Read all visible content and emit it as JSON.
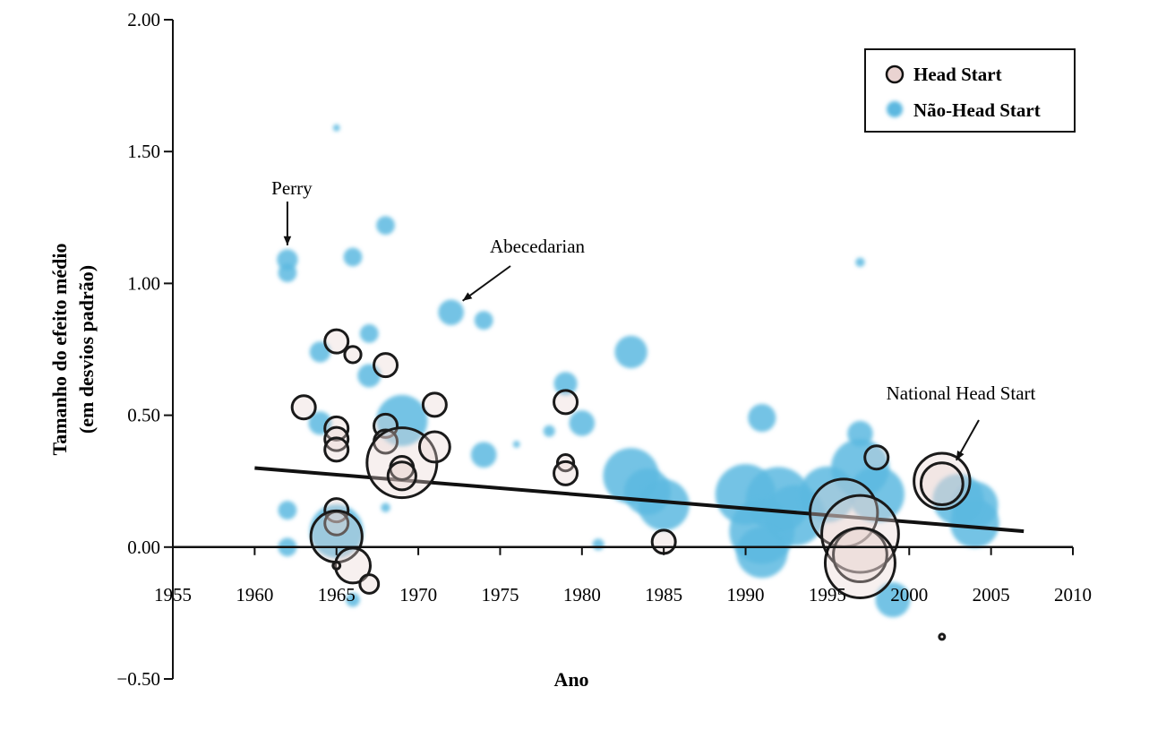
{
  "chart_data": {
    "type": "scatter",
    "title": "",
    "xlabel": "Ano",
    "ylabel": "Tamanho do efeito médio",
    "ylabel2": "(em desvios padrão)",
    "xlim": [
      1955,
      2010
    ],
    "ylim": [
      -0.5,
      2.0
    ],
    "x_ticks": [
      "1955",
      "1960",
      "1965",
      "1970",
      "1975",
      "1980",
      "1985",
      "1990",
      "1995",
      "2000",
      "2005",
      "2010"
    ],
    "y_ticks": [
      "−0.50",
      "0.00",
      "0.50",
      "1.00",
      "1.50",
      "2.00"
    ],
    "legend_position": "top-right",
    "colors": {
      "head_start_fill": "#e9d3d1",
      "head_start_stroke": "#1a1a1a",
      "non_head_start": "#5cb8e0",
      "trend": "#111111"
    },
    "series": [
      {
        "name": "Head Start",
        "points": [
          {
            "x": 1963,
            "y": 0.53,
            "s": 1
          },
          {
            "x": 1965,
            "y": 0.78,
            "s": 1
          },
          {
            "x": 1966,
            "y": 0.73,
            "s": 0.7
          },
          {
            "x": 1968,
            "y": 0.69,
            "s": 1
          },
          {
            "x": 1965,
            "y": 0.45,
            "s": 1
          },
          {
            "x": 1965,
            "y": 0.41,
            "s": 1
          },
          {
            "x": 1965,
            "y": 0.37,
            "s": 1
          },
          {
            "x": 1968,
            "y": 0.46,
            "s": 1
          },
          {
            "x": 1968,
            "y": 0.4,
            "s": 1
          },
          {
            "x": 1969,
            "y": 0.32,
            "s": 3
          },
          {
            "x": 1969,
            "y": 0.3,
            "s": 1
          },
          {
            "x": 1969,
            "y": 0.27,
            "s": 1.2
          },
          {
            "x": 1971,
            "y": 0.54,
            "s": 1
          },
          {
            "x": 1971,
            "y": 0.38,
            "s": 1.3
          },
          {
            "x": 1965,
            "y": 0.14,
            "s": 1
          },
          {
            "x": 1965,
            "y": 0.09,
            "s": 1
          },
          {
            "x": 1965,
            "y": 0.04,
            "s": 2.2
          },
          {
            "x": 1966,
            "y": -0.07,
            "s": 1.5
          },
          {
            "x": 1967,
            "y": -0.14,
            "s": 0.8
          },
          {
            "x": 1965,
            "y": -0.07,
            "s": 0.3
          },
          {
            "x": 1979,
            "y": 0.55,
            "s": 1
          },
          {
            "x": 1979,
            "y": 0.32,
            "s": 0.7
          },
          {
            "x": 1979,
            "y": 0.28,
            "s": 1
          },
          {
            "x": 1985,
            "y": 0.02,
            "s": 1
          },
          {
            "x": 1996,
            "y": 0.13,
            "s": 2.9
          },
          {
            "x": 1997,
            "y": 0.05,
            "s": 3.3
          },
          {
            "x": 1997,
            "y": -0.03,
            "s": 2.3
          },
          {
            "x": 1997,
            "y": -0.06,
            "s": 3.0
          },
          {
            "x": 1998,
            "y": 0.34,
            "s": 1
          },
          {
            "x": 2002,
            "y": 0.25,
            "s": 2.4
          },
          {
            "x": 2002,
            "y": 0.24,
            "s": 1.8
          },
          {
            "x": 2002,
            "y": -0.34,
            "s": 0.2
          }
        ]
      },
      {
        "name": "Não-Head Start",
        "points": [
          {
            "x": 1965,
            "y": 1.59,
            "s": 0.3
          },
          {
            "x": 1962,
            "y": 1.09,
            "s": 0.9
          },
          {
            "x": 1962,
            "y": 1.04,
            "s": 0.8
          },
          {
            "x": 1968,
            "y": 1.22,
            "s": 0.8
          },
          {
            "x": 1966,
            "y": 1.1,
            "s": 0.8
          },
          {
            "x": 1972,
            "y": 0.89,
            "s": 1.1
          },
          {
            "x": 1974,
            "y": 0.86,
            "s": 0.8
          },
          {
            "x": 1964,
            "y": 0.74,
            "s": 0.9
          },
          {
            "x": 1967,
            "y": 0.81,
            "s": 0.8
          },
          {
            "x": 1967,
            "y": 0.65,
            "s": 1
          },
          {
            "x": 1964,
            "y": 0.47,
            "s": 1
          },
          {
            "x": 1969,
            "y": 0.48,
            "s": 2.2
          },
          {
            "x": 1974,
            "y": 0.35,
            "s": 1.1
          },
          {
            "x": 1976,
            "y": 0.39,
            "s": 0.3
          },
          {
            "x": 1978,
            "y": 0.44,
            "s": 0.5
          },
          {
            "x": 1979,
            "y": 0.62,
            "s": 1
          },
          {
            "x": 1980,
            "y": 0.47,
            "s": 1.1
          },
          {
            "x": 1981,
            "y": 0.01,
            "s": 0.5
          },
          {
            "x": 1983,
            "y": 0.74,
            "s": 1.4
          },
          {
            "x": 1983,
            "y": 0.27,
            "s": 2.4
          },
          {
            "x": 1984,
            "y": 0.21,
            "s": 2.0
          },
          {
            "x": 1985,
            "y": 0.16,
            "s": 2.2
          },
          {
            "x": 1962,
            "y": 0.14,
            "s": 0.8
          },
          {
            "x": 1962,
            "y": 0.0,
            "s": 0.8
          },
          {
            "x": 1965,
            "y": 0.06,
            "s": 2.3
          },
          {
            "x": 1966,
            "y": -0.2,
            "s": 0.6
          },
          {
            "x": 1968,
            "y": 0.15,
            "s": 0.4
          },
          {
            "x": 1991,
            "y": 0.49,
            "s": 1.2
          },
          {
            "x": 1990,
            "y": 0.2,
            "s": 2.6
          },
          {
            "x": 1992,
            "y": 0.18,
            "s": 2.8
          },
          {
            "x": 1991,
            "y": 0.06,
            "s": 2.8
          },
          {
            "x": 1993,
            "y": 0.12,
            "s": 2.6
          },
          {
            "x": 1995,
            "y": 0.2,
            "s": 2.4
          },
          {
            "x": 1991,
            "y": -0.02,
            "s": 2.2
          },
          {
            "x": 1997,
            "y": 0.43,
            "s": 1.1
          },
          {
            "x": 1997,
            "y": 0.3,
            "s": 2.5
          },
          {
            "x": 1998,
            "y": 0.2,
            "s": 2.4
          },
          {
            "x": 1999,
            "y": -0.2,
            "s": 1.5
          },
          {
            "x": 2004,
            "y": 0.16,
            "s": 2.0
          },
          {
            "x": 2004,
            "y": 0.09,
            "s": 2.1
          },
          {
            "x": 2003,
            "y": 0.18,
            "s": 2.2
          },
          {
            "x": 1997,
            "y": 1.08,
            "s": 0.4
          }
        ]
      }
    ],
    "trend_line": {
      "x": [
        1960,
        2007
      ],
      "y": [
        0.3,
        0.06
      ]
    },
    "annotations": [
      {
        "text": "Perry",
        "x": 1962,
        "y": 1.09
      },
      {
        "text": "Abecedarian",
        "x": 1972,
        "y": 0.89
      },
      {
        "text": "National Head Start",
        "x": 2002,
        "y": 0.37
      }
    ]
  }
}
